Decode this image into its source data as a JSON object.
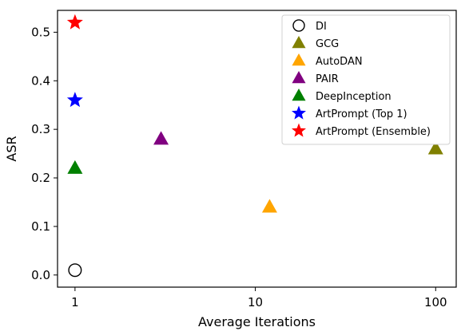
{
  "chart_data": {
    "type": "scatter",
    "xlabel": "Average Iterations",
    "ylabel": "ASR",
    "x_scale": "log",
    "xlim": [
      0.8,
      130
    ],
    "ylim": [
      -0.025,
      0.545
    ],
    "x_ticks": [
      {
        "value": 1,
        "label": "1"
      },
      {
        "value": 10,
        "label": "10"
      },
      {
        "value": 100,
        "label": "100"
      }
    ],
    "y_ticks": [
      {
        "value": 0.0,
        "label": "0.0"
      },
      {
        "value": 0.1,
        "label": "0.1"
      },
      {
        "value": 0.2,
        "label": "0.2"
      },
      {
        "value": 0.3,
        "label": "0.3"
      },
      {
        "value": 0.4,
        "label": "0.4"
      },
      {
        "value": 0.5,
        "label": "0.5"
      }
    ],
    "grid": false,
    "legend_position": "top-right",
    "series": [
      {
        "name": "DI",
        "marker": "circle-open",
        "color": "#000000",
        "points": [
          {
            "x": 1,
            "y": 0.01
          }
        ]
      },
      {
        "name": "GCG",
        "marker": "triangle",
        "color": "#808000",
        "points": [
          {
            "x": 100,
            "y": 0.26
          }
        ]
      },
      {
        "name": "AutoDAN",
        "marker": "triangle",
        "color": "#ffa500",
        "points": [
          {
            "x": 12,
            "y": 0.14
          }
        ]
      },
      {
        "name": "PAIR",
        "marker": "triangle",
        "color": "#800080",
        "points": [
          {
            "x": 3,
            "y": 0.28
          }
        ]
      },
      {
        "name": "DeepInception",
        "marker": "triangle",
        "color": "#008000",
        "points": [
          {
            "x": 1,
            "y": 0.22
          }
        ]
      },
      {
        "name": "ArtPrompt (Top 1)",
        "marker": "star",
        "color": "#0000ff",
        "points": [
          {
            "x": 1,
            "y": 0.36
          }
        ]
      },
      {
        "name": "ArtPrompt (Ensemble)",
        "marker": "star",
        "color": "#ff0000",
        "points": [
          {
            "x": 1,
            "y": 0.52
          }
        ]
      }
    ]
  }
}
